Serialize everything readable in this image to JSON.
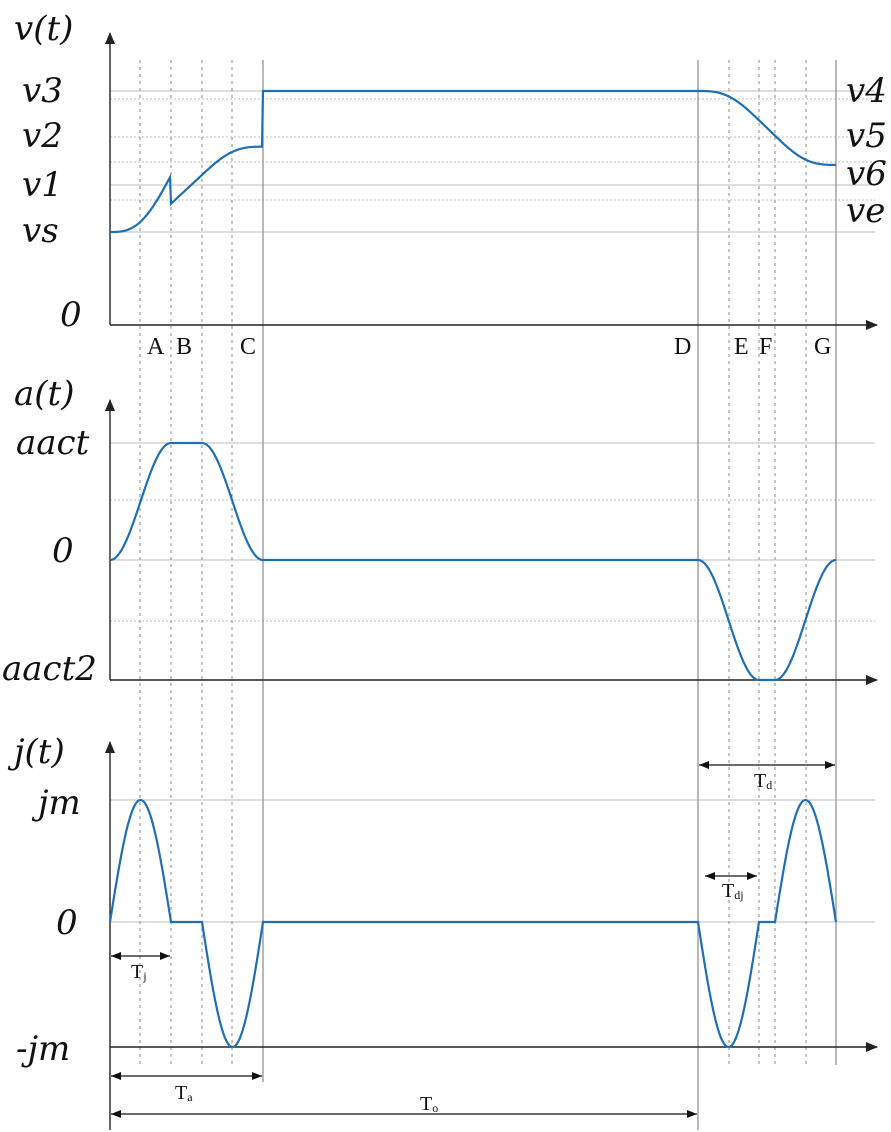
{
  "plots": {
    "velocity": {
      "axis_title": "v(t)",
      "left_levels": [
        "v3",
        "v2",
        "v1",
        "vs",
        "0"
      ],
      "right_levels": [
        "v4",
        "v5",
        "v6",
        "ve"
      ]
    },
    "acceleration": {
      "axis_title": "a(t)",
      "left_levels": [
        "aact",
        "0",
        "aact2"
      ]
    },
    "jerk": {
      "axis_title": "j(t)",
      "left_levels": [
        "jm",
        "0",
        "-jm"
      ]
    }
  },
  "time_markers": [
    "A",
    "B",
    "C",
    "D",
    "E",
    "F",
    "G"
  ],
  "intervals": {
    "Td": {
      "main": "T",
      "sub": "d"
    },
    "Tdj": {
      "main": "T",
      "sub": "dj"
    },
    "Tj": {
      "main": "T",
      "sub": "j"
    },
    "Ta": {
      "main": "T",
      "sub": "a"
    },
    "To": {
      "main": "T",
      "sub": "o"
    }
  },
  "colors": {
    "curve": "#1f6fb4",
    "axis": "#222222",
    "grid": "#bdbdbd"
  }
}
